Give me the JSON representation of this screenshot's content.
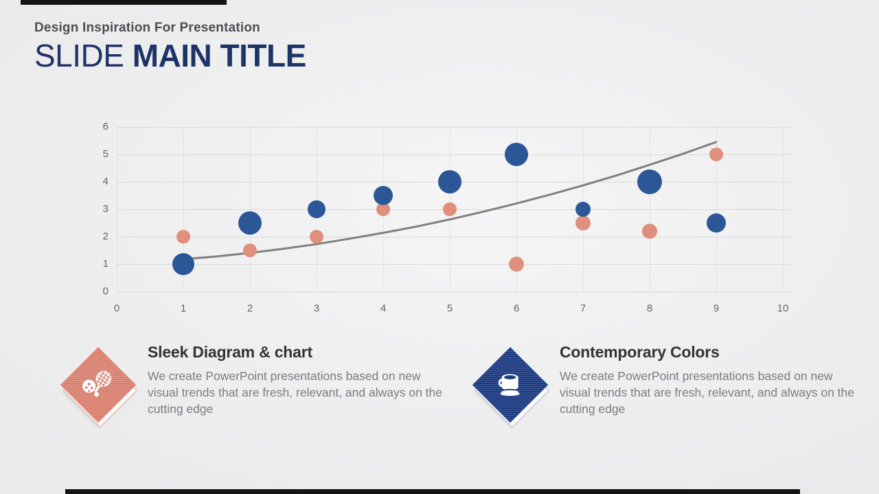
{
  "header": {
    "subtitle": "Design Inspiration For Presentation",
    "title_light": "SLIDE ",
    "title_bold": "MAIN TITLE"
  },
  "chart_data": {
    "type": "scatter",
    "title": "",
    "xlabel": "",
    "ylabel": "",
    "xlim": [
      0,
      10
    ],
    "ylim": [
      0,
      6
    ],
    "x_ticks": [
      0,
      1,
      2,
      3,
      4,
      5,
      6,
      7,
      8,
      9,
      10
    ],
    "y_ticks": [
      0,
      1,
      2,
      3,
      4,
      5,
      6
    ],
    "grid": "on",
    "legend": "none",
    "series": [
      {
        "name": "pink-bubbles",
        "type": "bubble",
        "color": "#e08f7d",
        "points": [
          {
            "x": 1,
            "y": 2,
            "r": 10
          },
          {
            "x": 2,
            "y": 1.5,
            "r": 10
          },
          {
            "x": 3,
            "y": 2,
            "r": 10
          },
          {
            "x": 4,
            "y": 3,
            "r": 10
          },
          {
            "x": 5,
            "y": 3,
            "r": 10
          },
          {
            "x": 6,
            "y": 1,
            "r": 11
          },
          {
            "x": 7,
            "y": 2.5,
            "r": 11
          },
          {
            "x": 8,
            "y": 2.2,
            "r": 11
          },
          {
            "x": 9,
            "y": 5,
            "r": 10
          }
        ]
      },
      {
        "name": "blue-bubbles",
        "type": "bubble",
        "color": "#2b5797",
        "points": [
          {
            "x": 1,
            "y": 1,
            "r": 16
          },
          {
            "x": 2,
            "y": 2.5,
            "r": 17
          },
          {
            "x": 3,
            "y": 3,
            "r": 13
          },
          {
            "x": 4,
            "y": 3.5,
            "r": 14
          },
          {
            "x": 5,
            "y": 4,
            "r": 17
          },
          {
            "x": 6,
            "y": 5,
            "r": 17
          },
          {
            "x": 7,
            "y": 3,
            "r": 11
          },
          {
            "x": 8,
            "y": 4,
            "r": 18
          },
          {
            "x": 9,
            "y": 2.5,
            "r": 14
          }
        ]
      },
      {
        "name": "trend-line",
        "type": "line",
        "color": "#7f7f7f",
        "width": 3,
        "points": [
          {
            "x": 1,
            "y": 1.18
          },
          {
            "x": 1.5,
            "y": 1.28
          },
          {
            "x": 2,
            "y": 1.41
          },
          {
            "x": 2.5,
            "y": 1.56
          },
          {
            "x": 3,
            "y": 1.73
          },
          {
            "x": 3.5,
            "y": 1.93
          },
          {
            "x": 4,
            "y": 2.14
          },
          {
            "x": 4.5,
            "y": 2.37
          },
          {
            "x": 5,
            "y": 2.63
          },
          {
            "x": 5.5,
            "y": 2.91
          },
          {
            "x": 6,
            "y": 3.21
          },
          {
            "x": 6.5,
            "y": 3.53
          },
          {
            "x": 7,
            "y": 3.87
          },
          {
            "x": 7.5,
            "y": 4.23
          },
          {
            "x": 8,
            "y": 4.62
          },
          {
            "x": 8.5,
            "y": 5.02
          },
          {
            "x": 9,
            "y": 5.45
          }
        ]
      }
    ]
  },
  "features": [
    {
      "title": "Sleek Diagram & chart",
      "body": "We create PowerPoint presentations based on new visual trends that are fresh, relevant, and always on the cutting edge",
      "icon": "sports-ball-racket-icon",
      "accent": "#d98170"
    },
    {
      "title": "Contemporary Colors",
      "body": "We create PowerPoint presentations based on new visual trends that are fresh, relevant, and always on the cutting edge",
      "icon": "coffee-cup-icon",
      "accent": "#1e3c82"
    }
  ]
}
